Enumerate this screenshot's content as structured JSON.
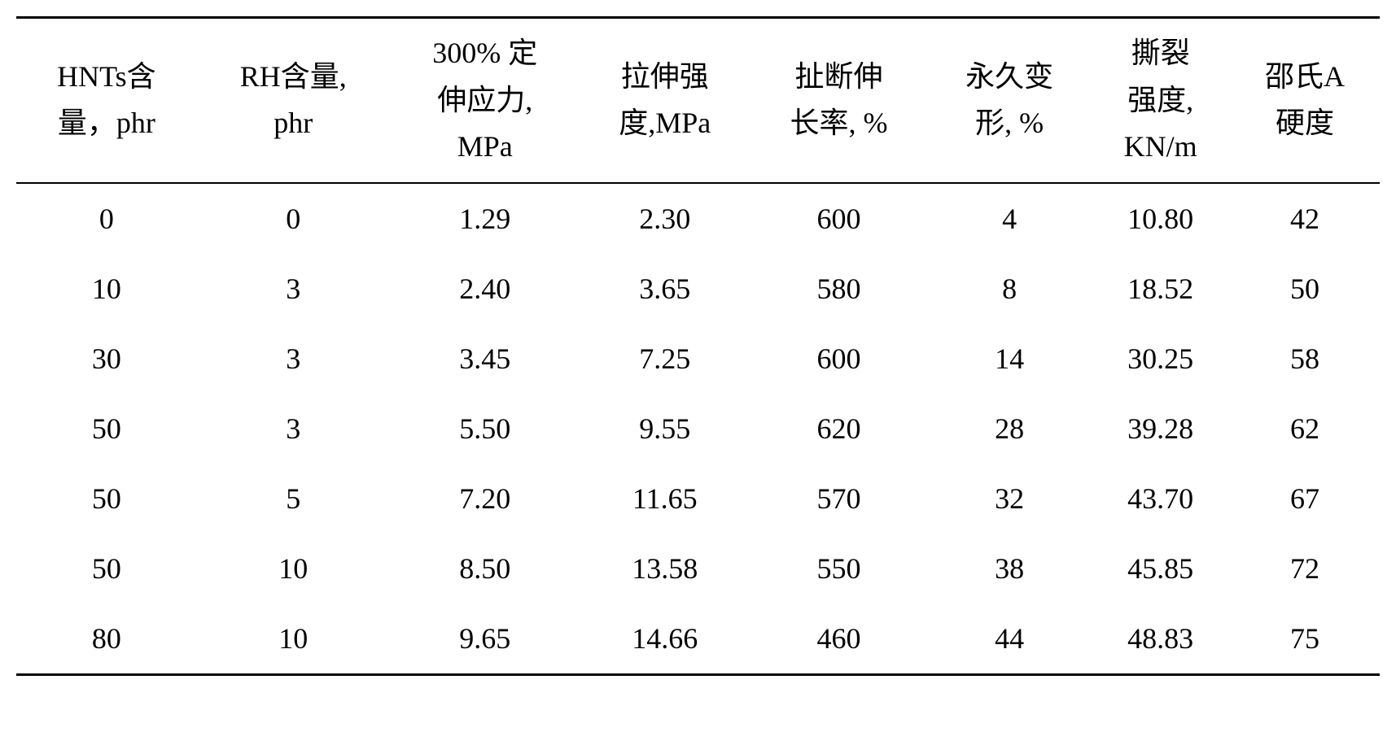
{
  "table": {
    "type": "table",
    "columns": [
      "HNTs含\n量，phr",
      "RH含量,\nphr",
      "300% 定\n伸应力,\nMPa",
      "拉伸强\n度,MPa",
      "扯断伸\n长率, %",
      "永久变\n形, %",
      "撕裂\n强度,\nKN/m",
      "邵氏A\n硬度"
    ],
    "rows": [
      [
        "0",
        "0",
        "1.29",
        "2.30",
        "600",
        "4",
        "10.80",
        "42"
      ],
      [
        "10",
        "3",
        "2.40",
        "3.65",
        "580",
        "8",
        "18.52",
        "50"
      ],
      [
        "30",
        "3",
        "3.45",
        "7.25",
        "600",
        "14",
        "30.25",
        "58"
      ],
      [
        "50",
        "3",
        "5.50",
        "9.55",
        "620",
        "28",
        "39.28",
        "62"
      ],
      [
        "50",
        "5",
        "7.20",
        "11.65",
        "570",
        "32",
        "43.70",
        "67"
      ],
      [
        "50",
        "10",
        "8.50",
        "13.58",
        "550",
        "38",
        "45.85",
        "72"
      ],
      [
        "80",
        "10",
        "9.65",
        "14.66",
        "460",
        "44",
        "48.83",
        "75"
      ]
    ],
    "border_color": "#000000",
    "background_color": "#ffffff",
    "text_color": "#000000",
    "font_size": 36,
    "header_border_top_width": 3,
    "header_border_bottom_width": 2,
    "table_border_bottom_width": 3,
    "column_count": 8,
    "row_count": 7
  }
}
